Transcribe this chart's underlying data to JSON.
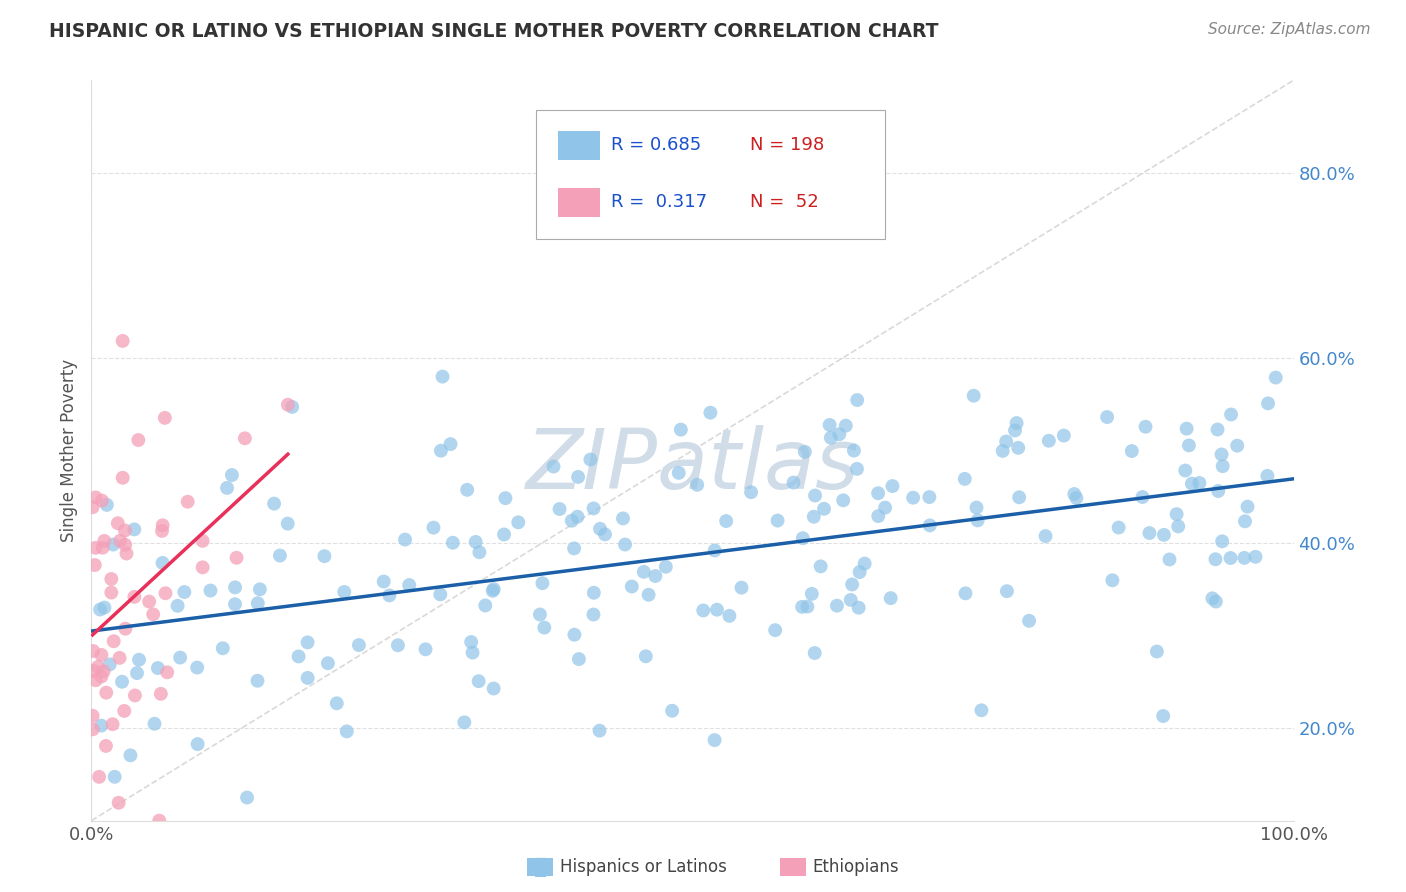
{
  "title": "HISPANIC OR LATINO VS ETHIOPIAN SINGLE MOTHER POVERTY CORRELATION CHART",
  "source": "Source: ZipAtlas.com",
  "ylabel": "Single Mother Poverty",
  "legend_label_1": "Hispanics or Latinos",
  "legend_label_2": "Ethiopians",
  "r1": 0.685,
  "n1": 198,
  "r2": 0.317,
  "n2": 52,
  "color_blue": "#90c4e8",
  "color_pink": "#f4a0b8",
  "line_color_blue": "#1a5fa8",
  "line_color_pink": "#e8305a",
  "diagonal_color": "#d0d0d0",
  "background_color": "#ffffff",
  "grid_color": "#e0e0e0",
  "title_color": "#333333",
  "source_color": "#888888",
  "legend_r_color": "#1a50cc",
  "legend_n_color": "#cc2020",
  "watermark_color": "#d0dce8",
  "ytick_color": "#4488cc",
  "xlim": [
    0.0,
    1.0
  ],
  "ylim": [
    0.1,
    0.9
  ],
  "x_ticks": [
    0.0,
    0.2,
    0.4,
    0.6,
    0.8,
    1.0
  ],
  "x_tick_labels": [
    "0.0%",
    "",
    "",
    "",
    "",
    "100.0%"
  ],
  "y_ticks": [
    0.2,
    0.4,
    0.6,
    0.8
  ],
  "y_tick_labels": [
    "20.0%",
    "40.0%",
    "60.0%",
    "80.0%"
  ],
  "watermark": "ZIPatlas"
}
